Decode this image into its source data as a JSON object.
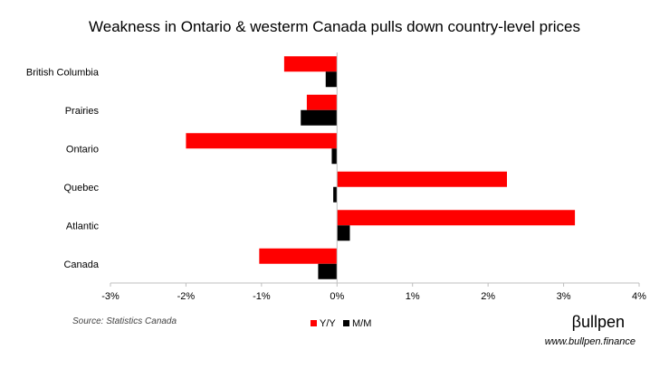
{
  "chart_data": {
    "type": "bar",
    "orientation": "horizontal",
    "title": "Weakness in Ontario & westerm Canada pulls down country-level prices",
    "categories": [
      "British Columbia",
      "Prairies",
      "Ontario",
      "Quebec",
      "Atlantic",
      "Canada"
    ],
    "series": [
      {
        "name": "Y/Y",
        "color": "#ff0000",
        "values": [
          -0.7,
          -0.4,
          -2.0,
          2.25,
          3.15,
          -1.03
        ]
      },
      {
        "name": "M/M",
        "color": "#000000",
        "values": [
          -0.15,
          -0.48,
          -0.07,
          -0.05,
          0.17,
          -0.25
        ]
      }
    ],
    "xlim": [
      -3,
      4
    ],
    "xticks": [
      -3,
      -2,
      -1,
      0,
      1,
      2,
      3,
      4
    ],
    "xtick_labels": [
      "-3%",
      "-2%",
      "-1%",
      "0%",
      "1%",
      "2%",
      "3%",
      "4%"
    ],
    "grid": false,
    "legend_position": "bottom-center"
  },
  "footer": {
    "source": "Source: Statistics Canada",
    "brand": "βullpen",
    "brand_url": "www.bullpen.finance"
  }
}
